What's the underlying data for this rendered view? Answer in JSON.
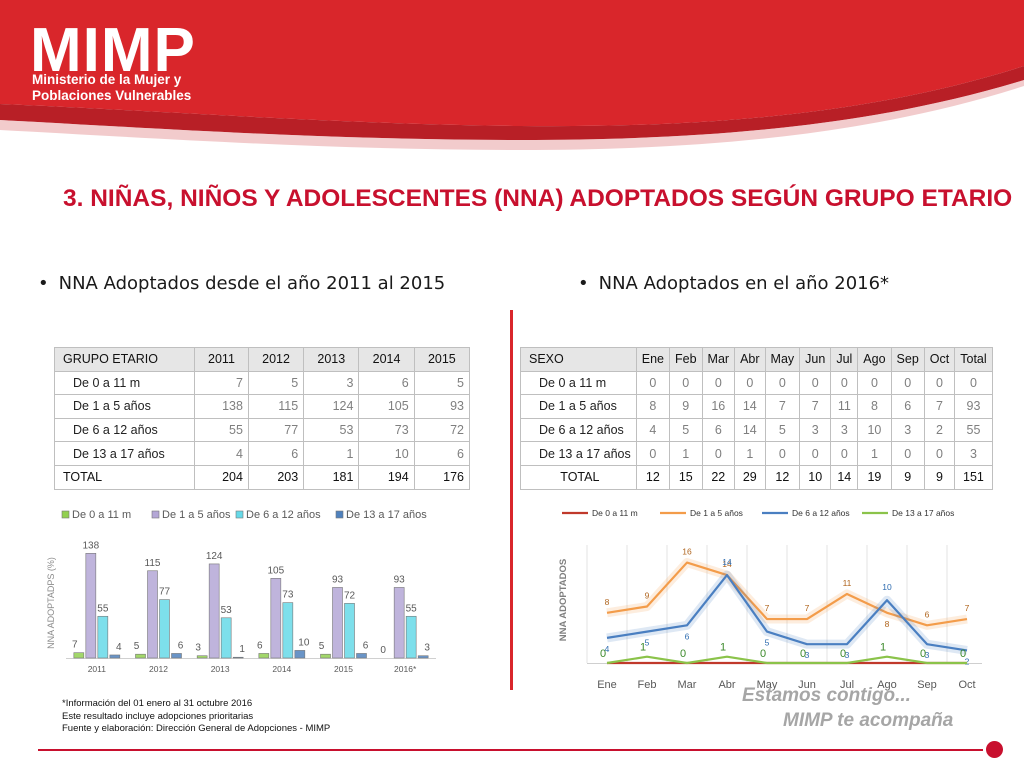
{
  "header": {
    "logo": "MIMP",
    "subtitle_line1": "Ministerio de la Mujer y",
    "subtitle_line2": "Poblaciones Vulnerables",
    "colors": {
      "red": "#d9262b",
      "dark_red": "#a51d24"
    }
  },
  "title": "3. NIÑAS, NIÑOS Y ADOLESCENTES (NNA) ADOPTADOS SEGÚN GRUPO ETARIO",
  "left": {
    "bullet": "NNA Adoptados desde el año 2011 al 2015",
    "table": {
      "headers": [
        "GRUPO ETARIO",
        "2011",
        "2012",
        "2013",
        "2014",
        "2015"
      ],
      "rows": [
        {
          "label": "De 0 a 11 m",
          "values": [
            "7",
            "5",
            "3",
            "6",
            "5"
          ]
        },
        {
          "label": "De 1 a 5 años",
          "values": [
            "138",
            "115",
            "124",
            "105",
            "93"
          ]
        },
        {
          "label": "De 6 a 12 años",
          "values": [
            "55",
            "77",
            "53",
            "73",
            "72"
          ]
        },
        {
          "label": "De 13 a 17 años",
          "values": [
            "4",
            "6",
            "1",
            "10",
            "6"
          ]
        }
      ],
      "total": {
        "label": "TOTAL",
        "values": [
          "204",
          "203",
          "181",
          "194",
          "176"
        ]
      }
    }
  },
  "right": {
    "bullet": "NNA Adoptados en el año 2016*",
    "table": {
      "headers": [
        "SEXO",
        "Ene",
        "Feb",
        "Mar",
        "Abr",
        "May",
        "Jun",
        "Jul",
        "Ago",
        "Sep",
        "Oct",
        "Total"
      ],
      "rows": [
        {
          "label": "De 0 a 11 m",
          "values": [
            "0",
            "0",
            "0",
            "0",
            "0",
            "0",
            "0",
            "0",
            "0",
            "0",
            "0"
          ]
        },
        {
          "label": "De 1 a 5 años",
          "values": [
            "8",
            "9",
            "16",
            "14",
            "7",
            "7",
            "11",
            "8",
            "6",
            "7",
            "93"
          ]
        },
        {
          "label": "De 6 a 12 años",
          "values": [
            "4",
            "5",
            "6",
            "14",
            "5",
            "3",
            "3",
            "10",
            "3",
            "2",
            "55"
          ]
        },
        {
          "label": "De 13 a 17 años",
          "values": [
            "0",
            "1",
            "0",
            "1",
            "0",
            "0",
            "0",
            "1",
            "0",
            "0",
            "3"
          ]
        }
      ],
      "total": {
        "label": "TOTAL",
        "values": [
          "12",
          "15",
          "22",
          "29",
          "12",
          "10",
          "14",
          "19",
          "9",
          "9",
          "151"
        ]
      }
    }
  },
  "chart_data": [
    {
      "type": "bar",
      "title": "",
      "ylabel": "NNA ADOPTADPS (%)",
      "categories": [
        "2011",
        "2012",
        "2013",
        "2014",
        "2015",
        "2016*"
      ],
      "ylim": [
        0,
        145
      ],
      "legend_position": "top",
      "series": [
        {
          "name": "De 0 a 11 m",
          "color": "#92d050",
          "values": [
            7,
            5,
            3,
            6,
            5,
            0
          ]
        },
        {
          "name": "De 1 a 5 años",
          "color": "#b4a7d6",
          "values": [
            138,
            115,
            124,
            105,
            93,
            93
          ]
        },
        {
          "name": "De 6 a 12 años",
          "color": "#66d9e8",
          "values": [
            55,
            77,
            53,
            73,
            72,
            55
          ]
        },
        {
          "name": "De 13 a 17 años",
          "color": "#4f81bd",
          "values": [
            4,
            6,
            1,
            10,
            6,
            3
          ]
        }
      ]
    },
    {
      "type": "line",
      "title": "",
      "ylabel": "NNA ADOPTADOS",
      "categories": [
        "Ene",
        "Feb",
        "Mar",
        "Abr",
        "May",
        "Jun",
        "Jul",
        "Ago",
        "Sep",
        "Oct"
      ],
      "ylim": [
        0,
        18
      ],
      "legend_position": "top",
      "series": [
        {
          "name": "De 0 a 11 m",
          "color": "#c0392b",
          "values": [
            0,
            0,
            0,
            0,
            0,
            0,
            0,
            0,
            0,
            0
          ]
        },
        {
          "name": "De 1 a 5 años",
          "color": "#f39c4a",
          "values": [
            8,
            9,
            16,
            14,
            7,
            7,
            11,
            8,
            6,
            7
          ]
        },
        {
          "name": "De 6 a 12 años",
          "color": "#4a7fc1",
          "values": [
            4,
            5,
            6,
            14,
            5,
            3,
            3,
            10,
            3,
            2
          ]
        },
        {
          "name": "De 13 a 17 años",
          "color": "#8bc34a",
          "values": [
            0,
            1,
            0,
            1,
            0,
            0,
            0,
            1,
            0,
            0
          ]
        }
      ]
    }
  ],
  "footnotes": [
    "*Información del 01 enero al 31 octubre 2016",
    "Este resultado incluye adopciones prioritarias",
    "Fuente y elaboración: Dirección General de Adopciones - MIMP"
  ],
  "tagline": {
    "line1": "Estamos contigo...",
    "line2": "MIMP te acompaña"
  }
}
